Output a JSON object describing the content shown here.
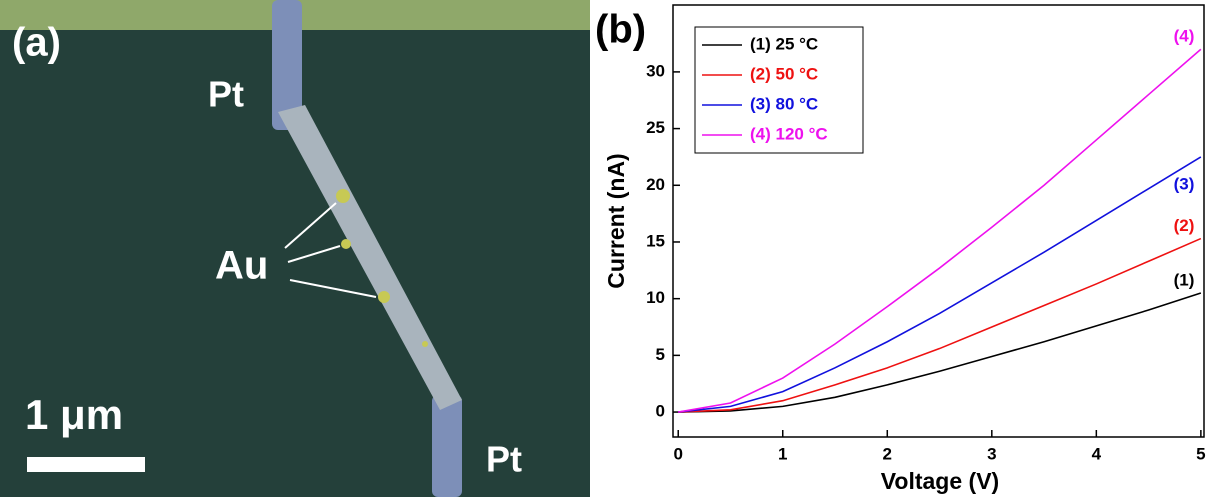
{
  "panel_a": {
    "label": "(a)",
    "pt_top": "Pt",
    "pt_bottom": "Pt",
    "au": "Au",
    "scale_bar": "1 μm"
  },
  "chart_data": {
    "type": "line",
    "panel_label": "(b)",
    "x_label": "Voltage (V)",
    "y_label": "Current (nA)",
    "x": [
      0,
      0.5,
      1,
      1.5,
      2,
      2.5,
      3,
      3.5,
      4,
      4.5,
      5
    ],
    "series": [
      {
        "name": "(1) 25 °C",
        "end_label": "(1)",
        "color": "#000000",
        "values": [
          0,
          0.1,
          0.5,
          1.3,
          2.4,
          3.6,
          4.9,
          6.2,
          7.6,
          9.0,
          10.5
        ]
      },
      {
        "name": "(2) 50 °C",
        "end_label": "(2)",
        "color": "#ee1111",
        "values": [
          0,
          0.2,
          1.0,
          2.4,
          3.9,
          5.6,
          7.5,
          9.4,
          11.3,
          13.3,
          15.3
        ]
      },
      {
        "name": "(3) 80 °C",
        "end_label": "(3)",
        "color": "#1111dd",
        "values": [
          0,
          0.5,
          1.8,
          3.9,
          6.2,
          8.7,
          11.4,
          14.1,
          16.9,
          19.7,
          22.5
        ]
      },
      {
        "name": "(4) 120 °C",
        "end_label": "(4)",
        "color": "#ee11ee",
        "values": [
          0,
          0.8,
          3.0,
          6.0,
          9.3,
          12.7,
          16.3,
          20.0,
          24.0,
          28.0,
          32.0
        ]
      }
    ],
    "xlim": [
      -0.05,
      5.03
    ],
    "ylim": [
      -2.2,
      35.9
    ],
    "xticks": [
      0,
      1,
      2,
      3,
      4,
      5
    ],
    "yticks": [
      0,
      5,
      10,
      15,
      20,
      25,
      30
    ],
    "legend": "upper-left"
  }
}
